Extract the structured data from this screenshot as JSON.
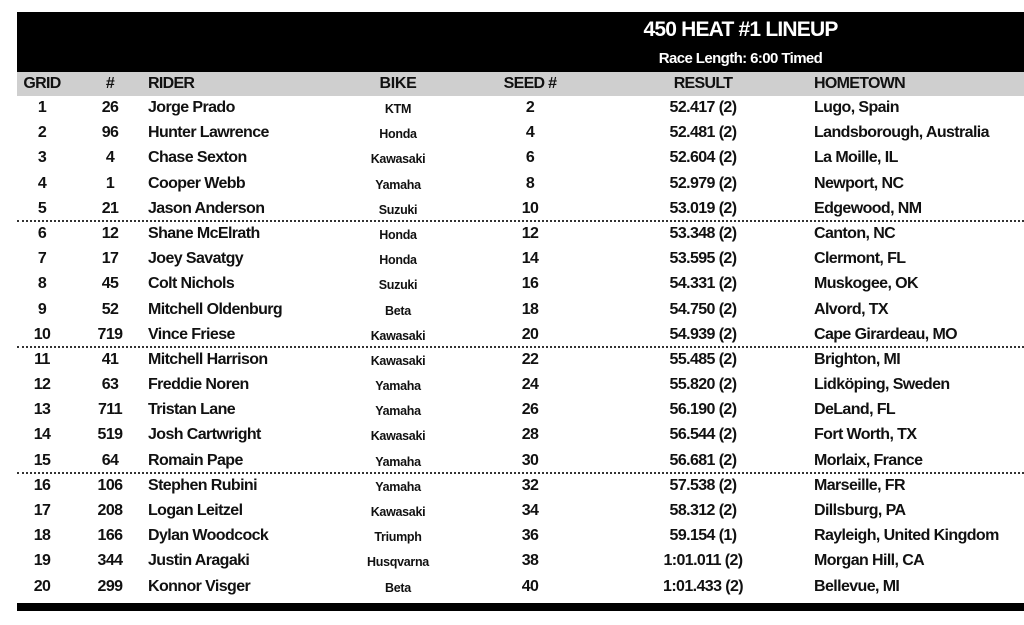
{
  "title": "450 HEAT #1 LINEUP",
  "subtitle": "Race Length: 6:00 Timed",
  "columns": {
    "grid": "GRID",
    "num": "#",
    "rider": "RIDER",
    "bike": "BIKE",
    "seed": "SEED #",
    "result": "RESULT",
    "hometown": "HOMETOWN"
  },
  "rows": [
    {
      "grid": "1",
      "num": "26",
      "rider": "Jorge Prado",
      "bike": "KTM",
      "seed": "2",
      "result": "52.417 (2)",
      "hometown": "Lugo, Spain"
    },
    {
      "grid": "2",
      "num": "96",
      "rider": "Hunter Lawrence",
      "bike": "Honda",
      "seed": "4",
      "result": "52.481 (2)",
      "hometown": "Landsborough, Australia"
    },
    {
      "grid": "3",
      "num": "4",
      "rider": "Chase Sexton",
      "bike": "Kawasaki",
      "seed": "6",
      "result": "52.604 (2)",
      "hometown": "La Moille, IL"
    },
    {
      "grid": "4",
      "num": "1",
      "rider": "Cooper Webb",
      "bike": "Yamaha",
      "seed": "8",
      "result": "52.979 (2)",
      "hometown": "Newport, NC"
    },
    {
      "grid": "5",
      "num": "21",
      "rider": "Jason Anderson",
      "bike": "Suzuki",
      "seed": "10",
      "result": "53.019 (2)",
      "hometown": "Edgewood, NM"
    },
    {
      "grid": "6",
      "num": "12",
      "rider": "Shane McElrath",
      "bike": "Honda",
      "seed": "12",
      "result": "53.348 (2)",
      "hometown": "Canton, NC"
    },
    {
      "grid": "7",
      "num": "17",
      "rider": "Joey Savatgy",
      "bike": "Honda",
      "seed": "14",
      "result": "53.595 (2)",
      "hometown": "Clermont, FL"
    },
    {
      "grid": "8",
      "num": "45",
      "rider": "Colt Nichols",
      "bike": "Suzuki",
      "seed": "16",
      "result": "54.331 (2)",
      "hometown": "Muskogee, OK"
    },
    {
      "grid": "9",
      "num": "52",
      "rider": "Mitchell Oldenburg",
      "bike": "Beta",
      "seed": "18",
      "result": "54.750 (2)",
      "hometown": "Alvord, TX"
    },
    {
      "grid": "10",
      "num": "719",
      "rider": "Vince Friese",
      "bike": "Kawasaki",
      "seed": "20",
      "result": "54.939 (2)",
      "hometown": "Cape Girardeau, MO"
    },
    {
      "grid": "11",
      "num": "41",
      "rider": "Mitchell Harrison",
      "bike": "Kawasaki",
      "seed": "22",
      "result": "55.485 (2)",
      "hometown": "Brighton, MI"
    },
    {
      "grid": "12",
      "num": "63",
      "rider": "Freddie Noren",
      "bike": "Yamaha",
      "seed": "24",
      "result": "55.820 (2)",
      "hometown": "Lidköping, Sweden"
    },
    {
      "grid": "13",
      "num": "711",
      "rider": "Tristan Lane",
      "bike": "Yamaha",
      "seed": "26",
      "result": "56.190 (2)",
      "hometown": "DeLand, FL"
    },
    {
      "grid": "14",
      "num": "519",
      "rider": "Josh Cartwright",
      "bike": "Kawasaki",
      "seed": "28",
      "result": "56.544 (2)",
      "hometown": "Fort Worth, TX"
    },
    {
      "grid": "15",
      "num": "64",
      "rider": "Romain Pape",
      "bike": "Yamaha",
      "seed": "30",
      "result": "56.681 (2)",
      "hometown": "Morlaix, France"
    },
    {
      "grid": "16",
      "num": "106",
      "rider": "Stephen Rubini",
      "bike": "Yamaha",
      "seed": "32",
      "result": "57.538 (2)",
      "hometown": "Marseille, FR"
    },
    {
      "grid": "17",
      "num": "208",
      "rider": "Logan Leitzel",
      "bike": "Kawasaki",
      "seed": "34",
      "result": "58.312 (2)",
      "hometown": "Dillsburg, PA"
    },
    {
      "grid": "18",
      "num": "166",
      "rider": "Dylan Woodcock",
      "bike": "Triumph",
      "seed": "36",
      "result": "59.154 (1)",
      "hometown": "Rayleigh, United Kingdom"
    },
    {
      "grid": "19",
      "num": "344",
      "rider": "Justin Aragaki",
      "bike": "Husqvarna",
      "seed": "38",
      "result": "1:01.011 (2)",
      "hometown": "Morgan Hill, CA"
    },
    {
      "grid": "20",
      "num": "299",
      "rider": "Konnor Visger",
      "bike": "Beta",
      "seed": "40",
      "result": "1:01.433 (2)",
      "hometown": "Bellevue, MI"
    }
  ]
}
